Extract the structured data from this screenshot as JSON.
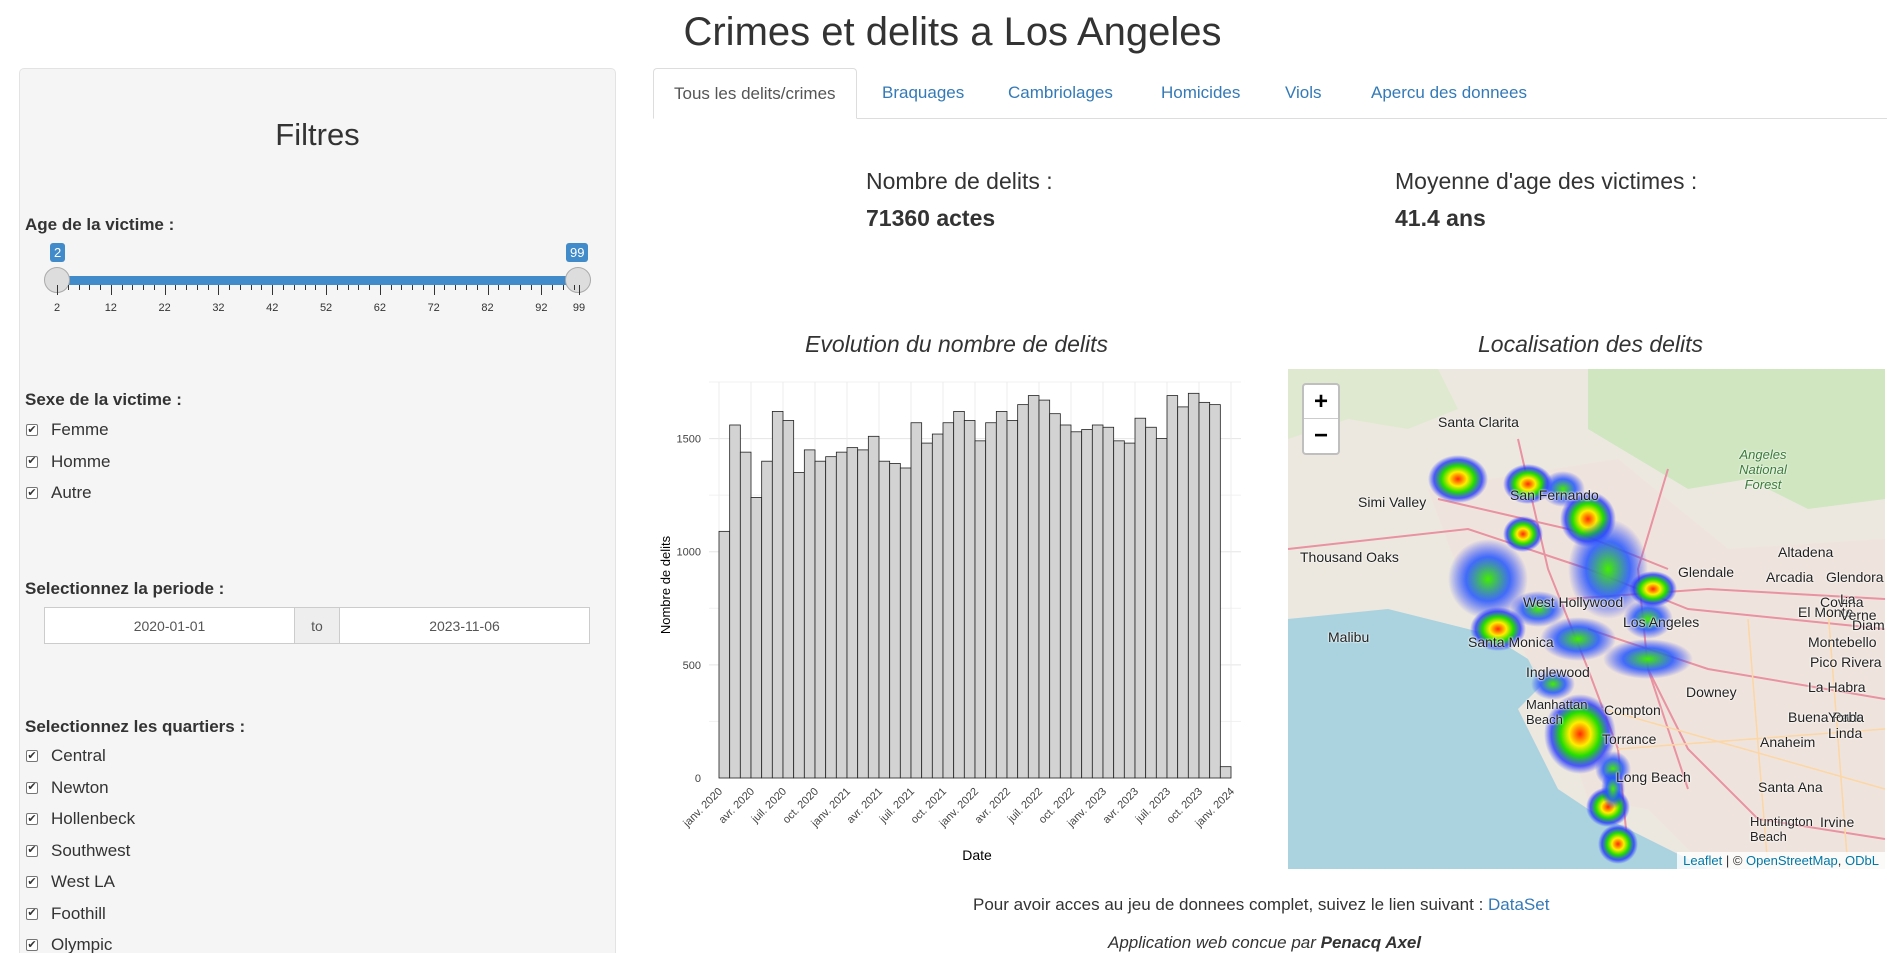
{
  "title": "Crimes et delits a Los Angeles",
  "sidebar": {
    "heading": "Filtres",
    "age_label": "Age de la victime :",
    "age_min": "2",
    "age_max": "99",
    "age_ticks": [
      "2",
      "12",
      "22",
      "32",
      "42",
      "52",
      "62",
      "72",
      "82",
      "92",
      "99"
    ],
    "sex_label": "Sexe de la victime :",
    "sex_options": [
      "Femme",
      "Homme",
      "Autre"
    ],
    "period_label": "Selectionnez la periode :",
    "date_start": "2020-01-01",
    "date_sep": "to",
    "date_end": "2023-11-06",
    "districts_label": "Selectionnez les quartiers :",
    "districts": [
      "Central",
      "Newton",
      "Hollenbeck",
      "Southwest",
      "West LA",
      "Foothill",
      "Olympic"
    ]
  },
  "tabs": [
    "Tous les delits/crimes",
    "Braquages",
    "Cambriolages",
    "Homicides",
    "Viols",
    "Apercu des donnees"
  ],
  "stats": {
    "count_label": "Nombre de delits :",
    "count_value": "71360 actes",
    "age_label": "Moyenne d'age des victimes :",
    "age_value": "41.4 ans"
  },
  "bar_chart_title": "Evolution du nombre de delits",
  "map_title": "Localisation des delits",
  "chart_data": {
    "type": "bar",
    "xlabel": "Date",
    "ylabel": "Nombre de delits",
    "ylim": [
      0,
      1750
    ],
    "yticks": [
      0,
      500,
      1000,
      1500
    ],
    "xtick_labels": [
      "janv. 2020",
      "avr. 2020",
      "juil. 2020",
      "oct. 2020",
      "janv. 2021",
      "avr. 2021",
      "juil. 2021",
      "oct. 2021",
      "janv. 2022",
      "avr. 2022",
      "juil. 2022",
      "oct. 2022",
      "janv. 2023",
      "avr. 2023",
      "juil. 2023",
      "oct. 2023",
      "janv. 2024"
    ],
    "values": [
      1090,
      1560,
      1440,
      1240,
      1400,
      1620,
      1580,
      1350,
      1450,
      1400,
      1420,
      1440,
      1460,
      1450,
      1510,
      1400,
      1390,
      1370,
      1570,
      1480,
      1520,
      1570,
      1620,
      1580,
      1490,
      1570,
      1620,
      1580,
      1650,
      1690,
      1670,
      1610,
      1560,
      1530,
      1540,
      1560,
      1550,
      1490,
      1480,
      1590,
      1550,
      1500,
      1690,
      1640,
      1700,
      1660,
      1650,
      50
    ]
  },
  "map": {
    "zoom_in": "+",
    "zoom_out": "−",
    "attrib_leaflet": "Leaflet",
    "attrib_sep": " | © ",
    "attrib_osm": "OpenStreetMap",
    "attrib_odbl": "ODbL",
    "labels": [
      "Santa Clarita",
      "Simi Valley",
      "Thousand Oaks",
      "San Fernando",
      "Glendale",
      "Altadena",
      "West Hollywood",
      "Los Angeles",
      "Santa Monica",
      "Malibu",
      "El Monte",
      "Montebello",
      "Pico Rivera",
      "Inglewood",
      "Downey",
      "Manhattan Beach",
      "Compton",
      "Torrance",
      "Long Beach",
      "Anaheim",
      "Santa Ana",
      "Huntington Beach",
      "Irvine",
      "Arcadia",
      "Glendora",
      "Covina",
      "La Verne",
      "Diamond",
      "Angeles National Forest",
      "La Habra",
      "Buena Park",
      "Yorba Linda"
    ]
  },
  "footer": {
    "link_text_prefix": "Pour avoir acces au jeu de donnees complet, suivez le lien suivant : ",
    "link": "DataSet",
    "credit_prefix": "Application web concue par ",
    "credit_name": "Penacq Axel"
  }
}
